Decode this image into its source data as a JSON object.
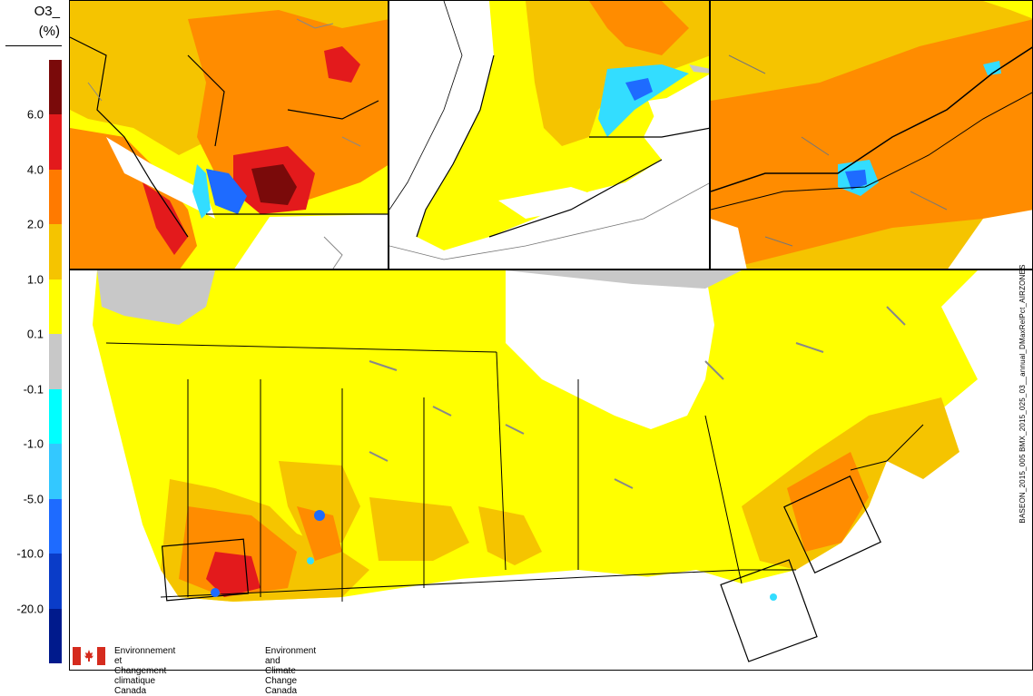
{
  "legend": {
    "title_line1": "O3_",
    "title_line2": "(%)",
    "ticks": [
      "6.0",
      "4.0",
      "2.0",
      "1.0",
      "0.1",
      "-0.1",
      "-1.0",
      "-5.0",
      "-10.0",
      "-20.0"
    ],
    "colors": [
      "#7a0a0a",
      "#e31a1c",
      "#ff7a00",
      "#f5c400",
      "#ffff00",
      "#c8c8c8",
      "#00ffff",
      "#33c8ff",
      "#1e6bff",
      "#0a3cc8",
      "#001a8c"
    ]
  },
  "side_label": "BASEON_2015_005 BMX_2015_025_03__annual_DMaxRelPct_AIRZONES",
  "agency": {
    "french": "Environnement et\nChangement climatique Canada",
    "english": "Environment and\nClimate Change Canada"
  },
  "map_colors": {
    "water": "#ffffff",
    "land_low": "#ffff00",
    "land_mid": "#f5c400",
    "land_high": "#ff8c00",
    "land_very_high": "#e31a1c",
    "land_max": "#7a0a0a",
    "neutral": "#c8c8c8",
    "cyan": "#33ddff",
    "blue": "#1e6bff",
    "boundary": "#000000",
    "lakes": "#888888"
  },
  "panels": [
    "inset-bc-lower-mainland",
    "inset-southern-ontario",
    "inset-quebec-corridor",
    "main-canada-map"
  ]
}
